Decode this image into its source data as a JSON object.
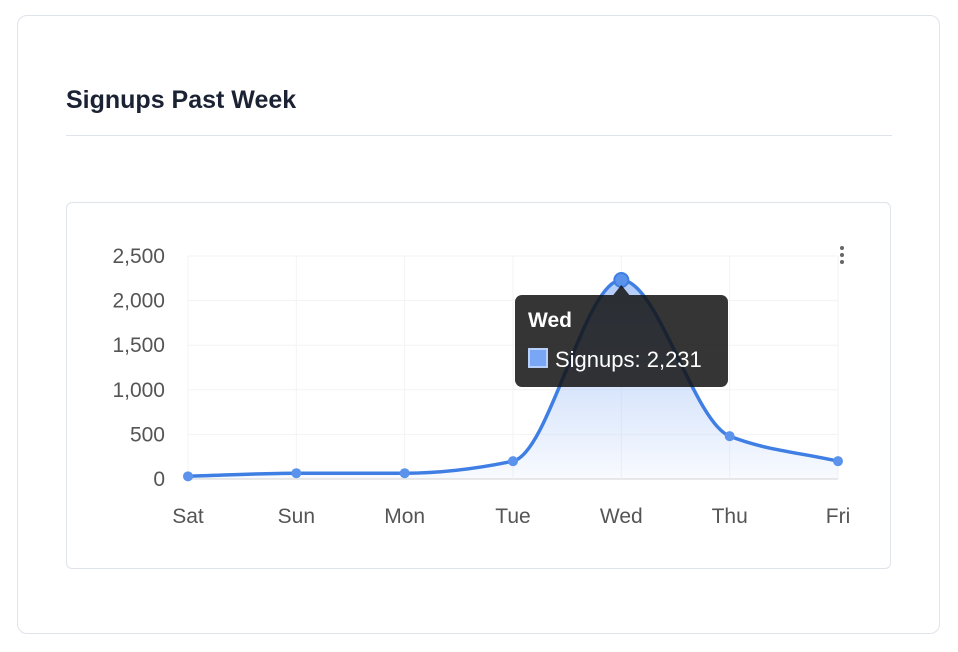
{
  "card": {
    "title": "Signups Past Week"
  },
  "chart_data": {
    "type": "area",
    "title": "Signups Past Week",
    "categories": [
      "Sat",
      "Sun",
      "Mon",
      "Tue",
      "Wed",
      "Thu",
      "Fri"
    ],
    "series": [
      {
        "name": "Signups",
        "values": [
          30,
          65,
          65,
          200,
          2231,
          480,
          200
        ]
      }
    ],
    "ylim": [
      0,
      2500
    ],
    "yticks": [
      0,
      500,
      1000,
      1500,
      2000,
      2500
    ],
    "ytick_labels": [
      "0",
      "500",
      "1,000",
      "1,500",
      "2,000",
      "2,500"
    ],
    "grid": true,
    "legend": "none",
    "colors": {
      "line": "#3f7fe3",
      "fill_top": "#a9c6f8"
    },
    "tooltip": {
      "title": "Wed",
      "text": "Signups: 2,231",
      "active_index": 4
    }
  }
}
